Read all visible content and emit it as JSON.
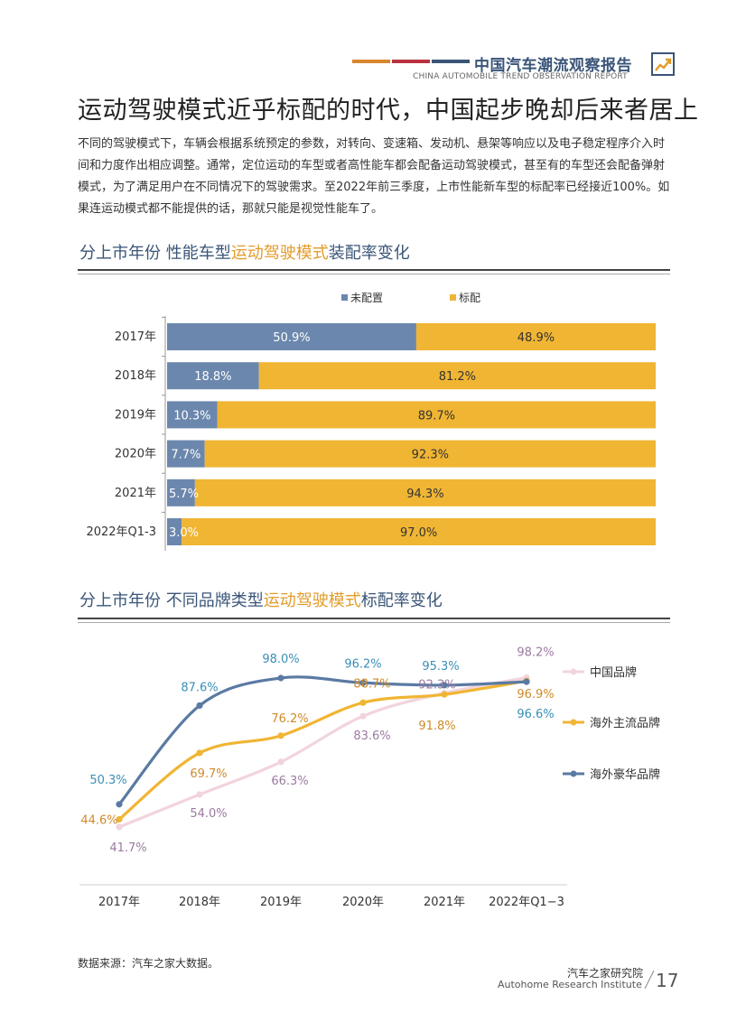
{
  "header": {
    "title_cn": "中国汽车潮流观察报告",
    "title_en": "CHINA AUTOMOBILE TREND OBSERVATION REPORT",
    "stripe_colors": [
      "#d9862e",
      "#b8333f",
      "#3a5578"
    ]
  },
  "main": {
    "heading": "运动驾驶模式近乎标配的时代，中国起步晚却后来者居上",
    "intro": "不同的驾驶模式下，车辆会根据系统预定的参数，对转向、变速箱、发动机、悬架等响应以及电子稳定程序介入时间和力度作出相应调整。通常，定位运动的车型或者高性能车都会配备运动驾驶模式，甚至有的车型还会配备弹射模式，为了满足用户在不同情况下的驾驶需求。至2022年前三季度，上市性能新车型的标配率已经接近100%。如果连运动模式都不能提供的话，那就只能是视觉性能车了。"
  },
  "section1": {
    "title_pre": "分上市年份  性能车型",
    "title_hl": "运动驾驶模式",
    "title_post": "装配率变化"
  },
  "section2": {
    "title_pre": "分上市年份  不同品牌类型",
    "title_hl": "运动驾驶模式",
    "title_post": "标配率变化"
  },
  "chart_data": [
    {
      "type": "bar",
      "stacked": true,
      "orientation": "horizontal",
      "title": "分上市年份 性能车型运动驾驶模式装配率变化",
      "categories": [
        "2017年",
        "2018年",
        "2019年",
        "2020年",
        "2021年",
        "2022年Q1-3"
      ],
      "series": [
        {
          "name": "未配置",
          "color": "#6b87ad",
          "values": [
            50.9,
            18.8,
            10.3,
            7.7,
            5.7,
            3.0
          ],
          "labels": [
            "50.9%",
            "18.8%",
            "10.3%",
            "7.7%",
            "5.7%",
            "3.0%"
          ]
        },
        {
          "name": "标配",
          "color": "#f0b533",
          "values": [
            48.9,
            81.2,
            89.7,
            92.3,
            94.3,
            97.0
          ],
          "labels": [
            "48.9%",
            "81.2%",
            "89.7%",
            "92.3%",
            "94.3%",
            "97.0%"
          ]
        }
      ],
      "xlim": [
        0,
        100
      ],
      "legend": "top-center"
    },
    {
      "type": "line",
      "title": "分上市年份 不同品牌类型运动驾驶模式标配率变化",
      "categories": [
        "2017年",
        "2018年",
        "2019年",
        "2020年",
        "2021年",
        "2022年Q1−3"
      ],
      "series": [
        {
          "name": "中国品牌",
          "color": "#f2d4dc",
          "label_color": "#9b7aa0",
          "values": [
            41.7,
            54.0,
            66.3,
            83.6,
            92.3,
            98.2
          ],
          "labels": [
            "41.7%",
            "54.0%",
            "66.3%",
            "83.6%",
            "92.3%",
            "98.2%"
          ]
        },
        {
          "name": "海外主流品牌",
          "color": "#f0b533",
          "label_color": "#d08a2a",
          "values": [
            44.6,
            69.7,
            76.2,
            88.7,
            91.8,
            96.9
          ],
          "labels": [
            "44.6%",
            "69.7%",
            "76.2%",
            "88.7%",
            "91.8%",
            "96.9%"
          ]
        },
        {
          "name": "海外豪华品牌",
          "color": "#5a7aa3",
          "label_color": "#3a8fb5",
          "values": [
            50.3,
            87.6,
            98.0,
            96.2,
            95.3,
            96.6
          ],
          "labels": [
            "50.3%",
            "87.6%",
            "98.0%",
            "96.2%",
            "95.3%",
            "96.6%"
          ]
        }
      ],
      "ylim": [
        30,
        105
      ],
      "legend": "right"
    }
  ],
  "footer": {
    "source": "数据来源：汽车之家大数据。",
    "institute_cn": "汽车之家研究院",
    "institute_en": "Autohome Research Institute",
    "page": "17"
  }
}
